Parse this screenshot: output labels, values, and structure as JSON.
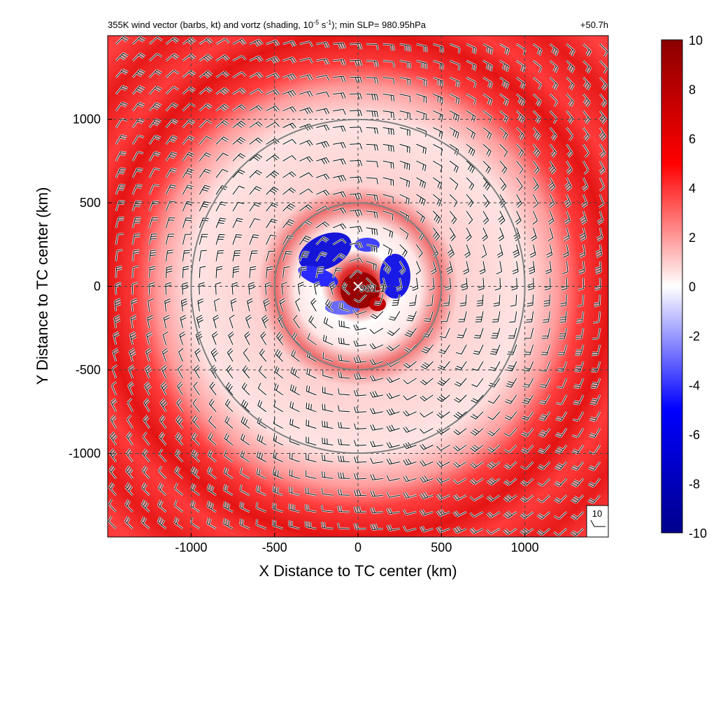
{
  "header": {
    "title_pre": "355K wind vector (barbs, kt) and vortz (shading, 10",
    "title_exp1": "-5",
    "title_mid": " s",
    "title_exp2": "-1",
    "title_post": "); min SLP= 980.95hPa",
    "time_label": "+50.7h"
  },
  "chart_data": {
    "type": "heatmap",
    "xlabel": "X Distance to TC center (km)",
    "ylabel": "Y Distance to TC center (km)",
    "xlim": [
      -1500,
      1500
    ],
    "ylim": [
      -1500,
      1500
    ],
    "xticks": [
      -1000,
      -500,
      0,
      500,
      1000
    ],
    "yticks": [
      1000,
      500,
      0,
      -500,
      -1000
    ],
    "grid": true,
    "grid_style": "dashed",
    "range_rings_km": [
      500,
      1000
    ],
    "center_marker": "x",
    "center_label": "981.1",
    "colorbar": {
      "min": -10,
      "max": 10,
      "ticks": [
        10,
        8,
        6,
        4,
        2,
        0,
        -2,
        -4,
        -6,
        -8,
        -10
      ],
      "colors": [
        "#00008b",
        "#0000ff",
        "#ffffff",
        "#ff0000",
        "#8b0000"
      ]
    },
    "reference_barb_label": "10",
    "barb_spacing_km": 100
  }
}
